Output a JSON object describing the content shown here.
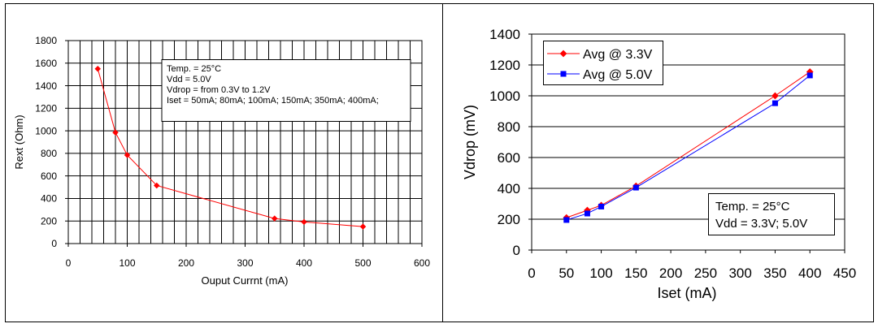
{
  "chart_data": [
    {
      "type": "line",
      "xlabel": "Ouput Currnt (mA)",
      "ylabel": "Rext (Ohm)",
      "xlim": [
        0,
        600
      ],
      "ylim": [
        0,
        1800
      ],
      "x_ticks": [
        0,
        100,
        200,
        300,
        400,
        500,
        600
      ],
      "y_ticks": [
        0,
        200,
        400,
        600,
        800,
        1000,
        1200,
        1400,
        1600,
        1800
      ],
      "grid": true,
      "series": [
        {
          "color": "#ff0000",
          "marker": "diamond",
          "points": [
            {
              "x": 50,
              "y": 1550
            },
            {
              "x": 80,
              "y": 985
            },
            {
              "x": 100,
              "y": 785
            },
            {
              "x": 150,
              "y": 515
            },
            {
              "x": 350,
              "y": 222
            },
            {
              "x": 400,
              "y": 192
            },
            {
              "x": 500,
              "y": 150
            }
          ]
        }
      ],
      "annotation": [
        "Temp. = 25°C",
        "Vdd = 5.0V",
        "Vdrop = from 0.3V to 1.2V",
        "Iset = 50mA; 80mA; 100mA; 150mA; 350mA; 400mA;"
      ]
    },
    {
      "type": "line",
      "xlabel": "Iset (mA)",
      "ylabel": "Vdrop (mV)",
      "xlim": [
        0,
        450
      ],
      "ylim": [
        0,
        1400
      ],
      "x_ticks": [
        0,
        50,
        100,
        150,
        200,
        250,
        300,
        350,
        400,
        450
      ],
      "y_ticks": [
        0,
        200,
        400,
        600,
        800,
        1000,
        1200,
        1400
      ],
      "grid": true,
      "legend_position": "top-left",
      "series": [
        {
          "name": "Avg @ 3.3V",
          "color": "#ff0000",
          "marker": "diamond",
          "points": [
            {
              "x": 50,
              "y": 210
            },
            {
              "x": 80,
              "y": 258
            },
            {
              "x": 100,
              "y": 290
            },
            {
              "x": 150,
              "y": 415
            },
            {
              "x": 350,
              "y": 1000
            },
            {
              "x": 400,
              "y": 1155
            }
          ]
        },
        {
          "name": "Avg @ 5.0V",
          "color": "#0000ff",
          "marker": "square",
          "points": [
            {
              "x": 50,
              "y": 195
            },
            {
              "x": 80,
              "y": 237
            },
            {
              "x": 100,
              "y": 282
            },
            {
              "x": 150,
              "y": 405
            },
            {
              "x": 350,
              "y": 952
            },
            {
              "x": 400,
              "y": 1132
            }
          ]
        }
      ],
      "annotation": [
        "Temp. = 25°C",
        "Vdd = 3.3V; 5.0V"
      ]
    }
  ]
}
